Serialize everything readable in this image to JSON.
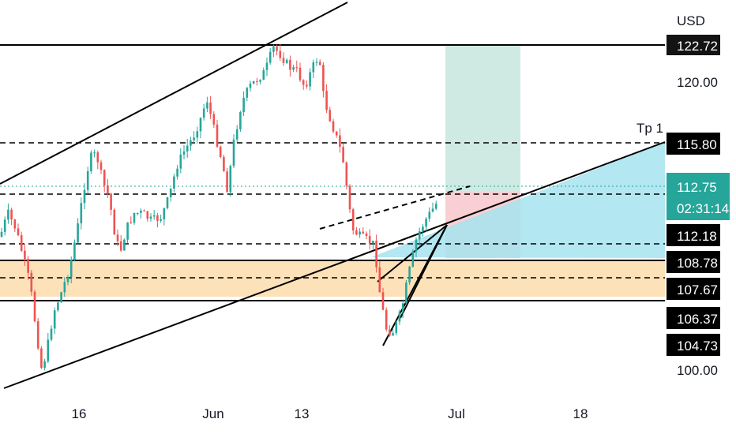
{
  "chart_data": {
    "type": "candlestick",
    "currency": "USD",
    "y_ticks": [
      "120.00",
      "100.00"
    ],
    "x_ticks": [
      "16",
      "Jun",
      "13",
      "Jul",
      "18"
    ],
    "price_labels": [
      {
        "value": "122.72",
        "style": "black"
      },
      {
        "value": "115.80",
        "style": "black"
      },
      {
        "value": "112.75",
        "style": "teal",
        "sub": "02:31:14"
      },
      {
        "value": "112.18",
        "style": "black"
      },
      {
        "value": "108.78",
        "style": "black"
      },
      {
        "value": "107.67",
        "style": "black"
      },
      {
        "value": "106.37",
        "style": "black"
      },
      {
        "value": "104.73",
        "style": "black"
      }
    ],
    "levels": [
      {
        "price": 122.72,
        "style": "solid"
      },
      {
        "price": 115.8,
        "style": "dashed"
      },
      {
        "price": 112.18,
        "style": "dashed"
      },
      {
        "price": 108.78,
        "style": "dashed"
      },
      {
        "price": 107.67,
        "style": "dashed"
      },
      {
        "price": 106.37,
        "style": "solid"
      }
    ],
    "last_price": 112.75,
    "zone": {
      "from": 105.5,
      "to": 107.9,
      "color": "#fcd9a8"
    },
    "annotations": [
      "Tp 1"
    ],
    "position": {
      "entry": 112.18,
      "target": 122.72,
      "stop": 110.3
    },
    "y_range": [
      97.2,
      125.2
    ],
    "up_color": "#26a69a",
    "down_color": "#ef5350"
  }
}
